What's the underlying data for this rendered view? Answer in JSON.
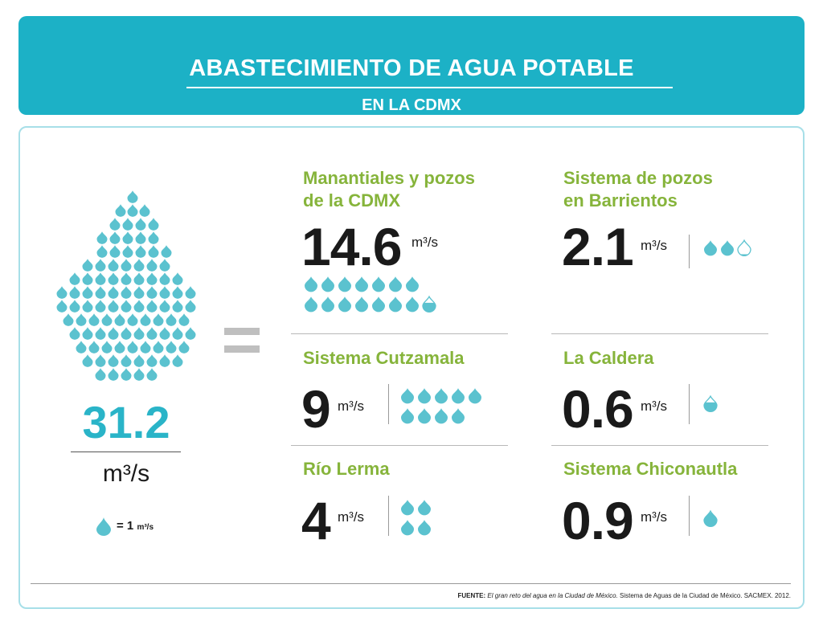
{
  "header": {
    "title": "ABASTECIMIENTO DE AGUA POTABLE",
    "subtitle": "EN LA CDMX"
  },
  "colors": {
    "header_bg": "#1cb1c6",
    "drop": "#5bc2cf",
    "label_green": "#86b43b",
    "total_blue": "#2ab4c8"
  },
  "total": {
    "value": "31.2",
    "unit": "m³/s"
  },
  "legend": {
    "text": "= 1",
    "unit": "m³/s"
  },
  "source": {
    "label": "FUENTE:",
    "work": "El gran reto del agua en la Ciudad de México.",
    "rest": "Sistema de Aguas de la Ciudad de México. SACMEX. 2012."
  },
  "chart_data": {
    "type": "pictogram",
    "unit": "m³/s",
    "icon_value": 1,
    "total": 31.2,
    "categories": [
      "Manantiales y pozos de la CDMX",
      "Sistema de pozos en Barrientos",
      "Sistema Cutzamala",
      "La Caldera",
      "Río Lerma",
      "Sistema Chiconautla"
    ],
    "values": [
      14.6,
      2.1,
      9,
      0.6,
      4,
      0.9
    ]
  },
  "items": [
    {
      "label": "Manantiales y pozos\nde la CDMX",
      "value": "14.6",
      "unit": "m³/s",
      "amount": 14.6
    },
    {
      "label": "Sistema de pozos\nen Barrientos",
      "value": "2.1",
      "unit": "m³/s",
      "amount": 2.1
    },
    {
      "label": "Sistema Cutzamala",
      "value": "9",
      "unit": "m³/s",
      "amount": 9
    },
    {
      "label": "La Caldera",
      "value": "0.6",
      "unit": "m³/s",
      "amount": 0.6
    },
    {
      "label": "Río Lerma",
      "value": "4",
      "unit": "m³/s",
      "amount": 4
    },
    {
      "label": "Sistema Chiconautla",
      "value": "0.9",
      "unit": "m³/s",
      "amount": 0.9
    }
  ]
}
